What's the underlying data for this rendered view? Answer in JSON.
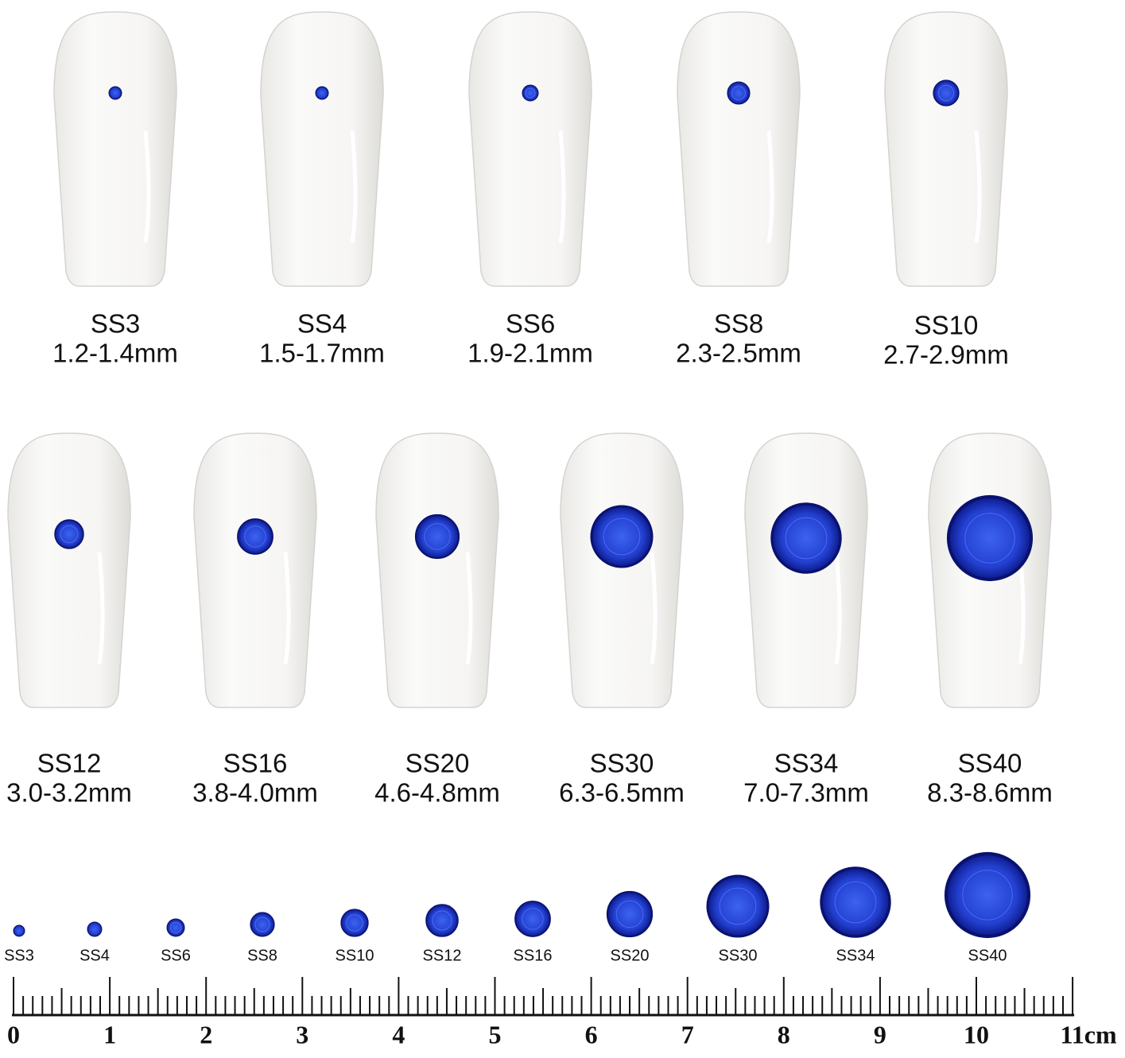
{
  "nails": [
    {
      "size": "SS3",
      "range": "1.2-1.4mm"
    },
    {
      "size": "SS4",
      "range": "1.5-1.7mm"
    },
    {
      "size": "SS6",
      "range": "1.9-2.1mm"
    },
    {
      "size": "SS8",
      "range": "2.3-2.5mm"
    },
    {
      "size": "SS10",
      "range": "2.7-2.9mm"
    },
    {
      "size": "SS12",
      "range": "3.0-3.2mm"
    },
    {
      "size": "SS16",
      "range": "3.8-4.0mm"
    },
    {
      "size": "SS20",
      "range": "4.6-4.8mm"
    },
    {
      "size": "SS30",
      "range": "6.3-6.5mm"
    },
    {
      "size": "SS34",
      "range": "7.0-7.3mm"
    },
    {
      "size": "SS40",
      "range": "8.3-8.6mm"
    }
  ],
  "gems": [
    "SS3",
    "SS4",
    "SS6",
    "SS8",
    "SS10",
    "SS12",
    "SS16",
    "SS20",
    "SS30",
    "SS34",
    "SS40"
  ],
  "ruler": [
    "0",
    "1",
    "2",
    "3",
    "4",
    "5",
    "6",
    "7",
    "8",
    "9",
    "10",
    "11cm"
  ]
}
